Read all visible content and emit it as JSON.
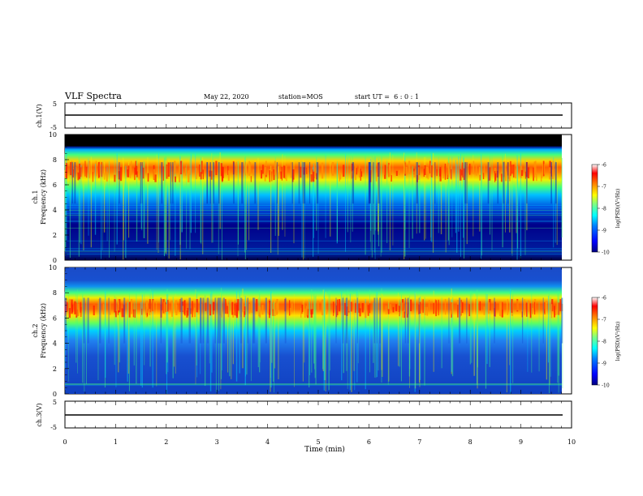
{
  "header": {
    "title": "VLF Spectra",
    "date": "May 22, 2020",
    "station_label": "station=",
    "station": "MOS",
    "start_label": "start UT =",
    "start_time": "6 : 0 : 1"
  },
  "chart_data": [
    {
      "type": "line",
      "panel": "ch1-waveform",
      "ylabel": "ch.1(V)",
      "yticks": [
        "5",
        "-5"
      ],
      "ylim": [
        -5,
        5
      ],
      "series": [
        {
          "values": [
            0,
            0
          ]
        }
      ],
      "x": [
        0,
        9.83
      ]
    },
    {
      "type": "heatmap",
      "panel": "ch1-spectrogram",
      "ylabel": "ch.1\nFrequency (kHz)",
      "ylabel_line1": "ch.1",
      "ylabel_line2": "Frequency (kHz)",
      "yticks": [
        "0",
        "2",
        "4",
        "6",
        "8",
        "10"
      ],
      "ylim": [
        0,
        10
      ],
      "xlim": [
        0,
        9.83
      ],
      "emission_band_khz": [
        5.5,
        8.0
      ],
      "peak_band_khz": [
        6.2,
        7.6
      ],
      "upper_cutoff_khz": 9.0,
      "colorbar": {
        "label": "log(PSD)(V²/Hz)",
        "ticks": [
          "-6",
          "-7",
          "-8",
          "-9",
          "-10"
        ],
        "range": [
          -10,
          -6
        ]
      }
    },
    {
      "type": "heatmap",
      "panel": "ch2-spectrogram",
      "ylabel": "ch.2\nFrequency (kHz)",
      "ylabel_line1": "ch.2",
      "ylabel_line2": "Frequency (kHz)",
      "yticks": [
        "0",
        "2",
        "4",
        "6",
        "8",
        "10"
      ],
      "ylim": [
        0,
        10
      ],
      "xlim": [
        0,
        9.83
      ],
      "emission_band_khz": [
        5.0,
        7.8
      ],
      "peak_band_khz": [
        6.0,
        7.2
      ],
      "colorbar": {
        "label": "log(PSD)(V²/Hz)",
        "ticks": [
          "-6",
          "-7",
          "-8",
          "-9",
          "-10"
        ],
        "range": [
          -10,
          -6
        ]
      }
    },
    {
      "type": "line",
      "panel": "ch3-waveform",
      "ylabel": "ch.3(V)",
      "yticks": [
        "5",
        "-5"
      ],
      "ylim": [
        -5,
        5
      ],
      "series": [
        {
          "values": [
            0,
            0
          ]
        }
      ],
      "x": [
        0,
        9.83
      ]
    }
  ],
  "xaxis": {
    "label": "Time (min)",
    "ticks": [
      "0",
      "1",
      "2",
      "3",
      "4",
      "5",
      "6",
      "7",
      "8",
      "9",
      "10"
    ],
    "range": [
      0,
      10
    ]
  },
  "colors": {
    "colormap": [
      "#000080",
      "#0000ff",
      "#0080ff",
      "#00ffff",
      "#80ff80",
      "#ffff00",
      "#ff8000",
      "#ff0000",
      "#ffb0b0",
      "#ffffff"
    ]
  }
}
